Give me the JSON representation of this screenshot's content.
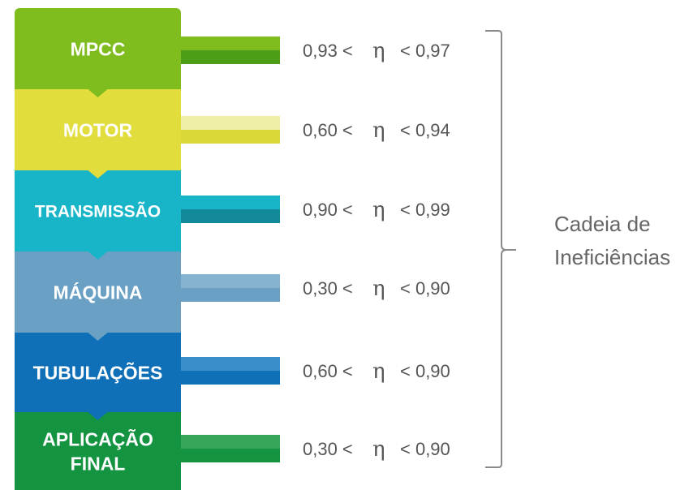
{
  "blocks": [
    {
      "label": [
        "MPCC"
      ],
      "color": "#7fbc1e",
      "bar_top": "#7fbc1e",
      "bar_bottom": "#4c9e19",
      "range": {
        "low": "0,93 <",
        "eta": "η",
        "high": "< 0,97"
      }
    },
    {
      "label": [
        "MOTOR"
      ],
      "color": "#e0dd3c",
      "bar_top": "#efeea6",
      "bar_bottom": "#d9d838",
      "range": {
        "low": "0,60 <",
        "eta": "η",
        "high": "< 0,94"
      }
    },
    {
      "label": [
        "TRANSMISSÃO"
      ],
      "color": "#18b5c9",
      "bar_top": "#18b5c9",
      "bar_bottom": "#138a9a",
      "range": {
        "low": "0,90 <",
        "eta": "η",
        "high": "< 0,99"
      }
    },
    {
      "label": [
        "MÁQUINA"
      ],
      "color": "#6aa0c4",
      "bar_top": "#86b3d0",
      "bar_bottom": "#6aa0c4",
      "range": {
        "low": "0,30 <",
        "eta": "η",
        "high": "< 0,90"
      }
    },
    {
      "label": [
        "TUBULAÇÕES"
      ],
      "color": "#0f70b7",
      "bar_top": "#3a8fcb",
      "bar_bottom": "#0f70b7",
      "range": {
        "low": "0,60 <",
        "eta": "η",
        "high": "< 0,90"
      }
    },
    {
      "label": [
        "APLICAÇÃO",
        "FINAL"
      ],
      "color": "#149440",
      "bar_top": "#35a65a",
      "bar_bottom": "#149440",
      "range": {
        "low": "0,30 <",
        "eta": "η",
        "high": "< 0,90"
      }
    }
  ],
  "chain_label": [
    "Cadeia de",
    "Ineficiências"
  ],
  "brace_color": "#8a8a8a"
}
